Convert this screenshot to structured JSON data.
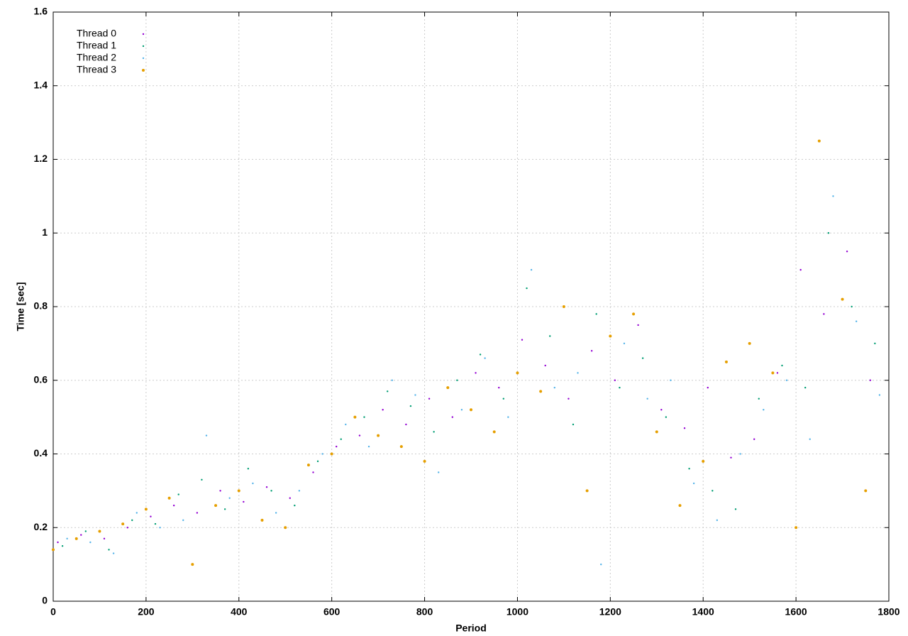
{
  "chart_data": {
    "type": "scatter",
    "x_label": "Period",
    "y_label": "Time [sec]",
    "xlim": [
      0,
      1800
    ],
    "xticks": [
      0,
      200,
      400,
      600,
      800,
      1000,
      1200,
      1400,
      1600,
      1800
    ],
    "ylim": [
      0,
      1.6
    ],
    "yticks": [
      0,
      0.2,
      0.4,
      0.6,
      0.8,
      1,
      1.2,
      1.4,
      1.6
    ],
    "grid": true,
    "legend": "top-left",
    "series": [
      {
        "name": "Thread 0",
        "color": "#9400d3",
        "x": [
          10,
          60,
          110,
          160,
          210,
          260,
          310,
          360,
          410,
          460,
          510,
          560,
          610,
          660,
          710,
          760,
          810,
          860,
          910,
          960,
          1010,
          1060,
          1110,
          1160,
          1210,
          1260,
          1310,
          1360,
          1410,
          1460,
          1510,
          1560,
          1610,
          1660,
          1710,
          1760
        ],
        "values": [
          0.16,
          0.18,
          0.17,
          0.2,
          0.23,
          0.26,
          0.24,
          0.3,
          0.27,
          0.31,
          0.28,
          0.35,
          0.42,
          0.45,
          0.52,
          0.48,
          0.55,
          0.5,
          0.62,
          0.58,
          0.71,
          0.64,
          0.55,
          0.68,
          0.6,
          0.75,
          0.52,
          0.47,
          0.58,
          0.39,
          0.44,
          0.62,
          0.9,
          0.78,
          0.95,
          0.6
        ]
      },
      {
        "name": "Thread 1",
        "color": "#009e73",
        "x": [
          20,
          70,
          120,
          170,
          220,
          270,
          320,
          370,
          420,
          470,
          520,
          570,
          620,
          670,
          720,
          770,
          820,
          870,
          920,
          970,
          1020,
          1070,
          1120,
          1170,
          1220,
          1270,
          1320,
          1370,
          1420,
          1470,
          1520,
          1570,
          1620,
          1670,
          1720,
          1770
        ],
        "values": [
          0.15,
          0.19,
          0.14,
          0.22,
          0.21,
          0.29,
          0.33,
          0.25,
          0.36,
          0.3,
          0.26,
          0.38,
          0.44,
          0.5,
          0.57,
          0.53,
          0.46,
          0.6,
          0.67,
          0.55,
          0.85,
          0.72,
          0.48,
          0.78,
          0.58,
          0.66,
          0.5,
          0.36,
          0.3,
          0.25,
          0.55,
          0.64,
          0.58,
          1.0,
          0.8,
          0.7
        ]
      },
      {
        "name": "Thread 2",
        "color": "#56b4e9",
        "x": [
          30,
          80,
          130,
          180,
          230,
          280,
          330,
          380,
          430,
          480,
          530,
          580,
          630,
          680,
          730,
          780,
          830,
          880,
          930,
          980,
          1030,
          1080,
          1130,
          1180,
          1230,
          1280,
          1330,
          1380,
          1430,
          1480,
          1530,
          1580,
          1630,
          1680,
          1730,
          1780
        ],
        "values": [
          0.17,
          0.16,
          0.13,
          0.24,
          0.2,
          0.22,
          0.45,
          0.28,
          0.32,
          0.24,
          0.3,
          0.4,
          0.48,
          0.42,
          0.6,
          0.56,
          0.35,
          0.52,
          0.66,
          0.5,
          0.9,
          0.58,
          0.62,
          0.1,
          0.7,
          0.55,
          0.6,
          0.32,
          0.22,
          0.4,
          0.52,
          0.6,
          0.44,
          1.1,
          0.76,
          0.56
        ]
      },
      {
        "name": "Thread 3",
        "color": "#e69f00",
        "x": [
          0,
          50,
          100,
          150,
          200,
          250,
          300,
          350,
          400,
          450,
          500,
          550,
          600,
          650,
          700,
          750,
          800,
          850,
          900,
          950,
          1000,
          1050,
          1100,
          1150,
          1200,
          1250,
          1300,
          1350,
          1400,
          1450,
          1500,
          1550,
          1600,
          1650,
          1700,
          1750
        ],
        "values": [
          0.14,
          0.17,
          0.19,
          0.21,
          0.25,
          0.28,
          0.1,
          0.26,
          0.3,
          0.22,
          0.2,
          0.37,
          0.4,
          0.5,
          0.45,
          0.42,
          0.38,
          0.58,
          0.52,
          0.46,
          0.62,
          0.57,
          0.8,
          0.3,
          0.72,
          0.78,
          0.46,
          0.26,
          0.38,
          0.65,
          0.7,
          0.62,
          0.2,
          1.25,
          0.82,
          0.3
        ]
      }
    ]
  }
}
